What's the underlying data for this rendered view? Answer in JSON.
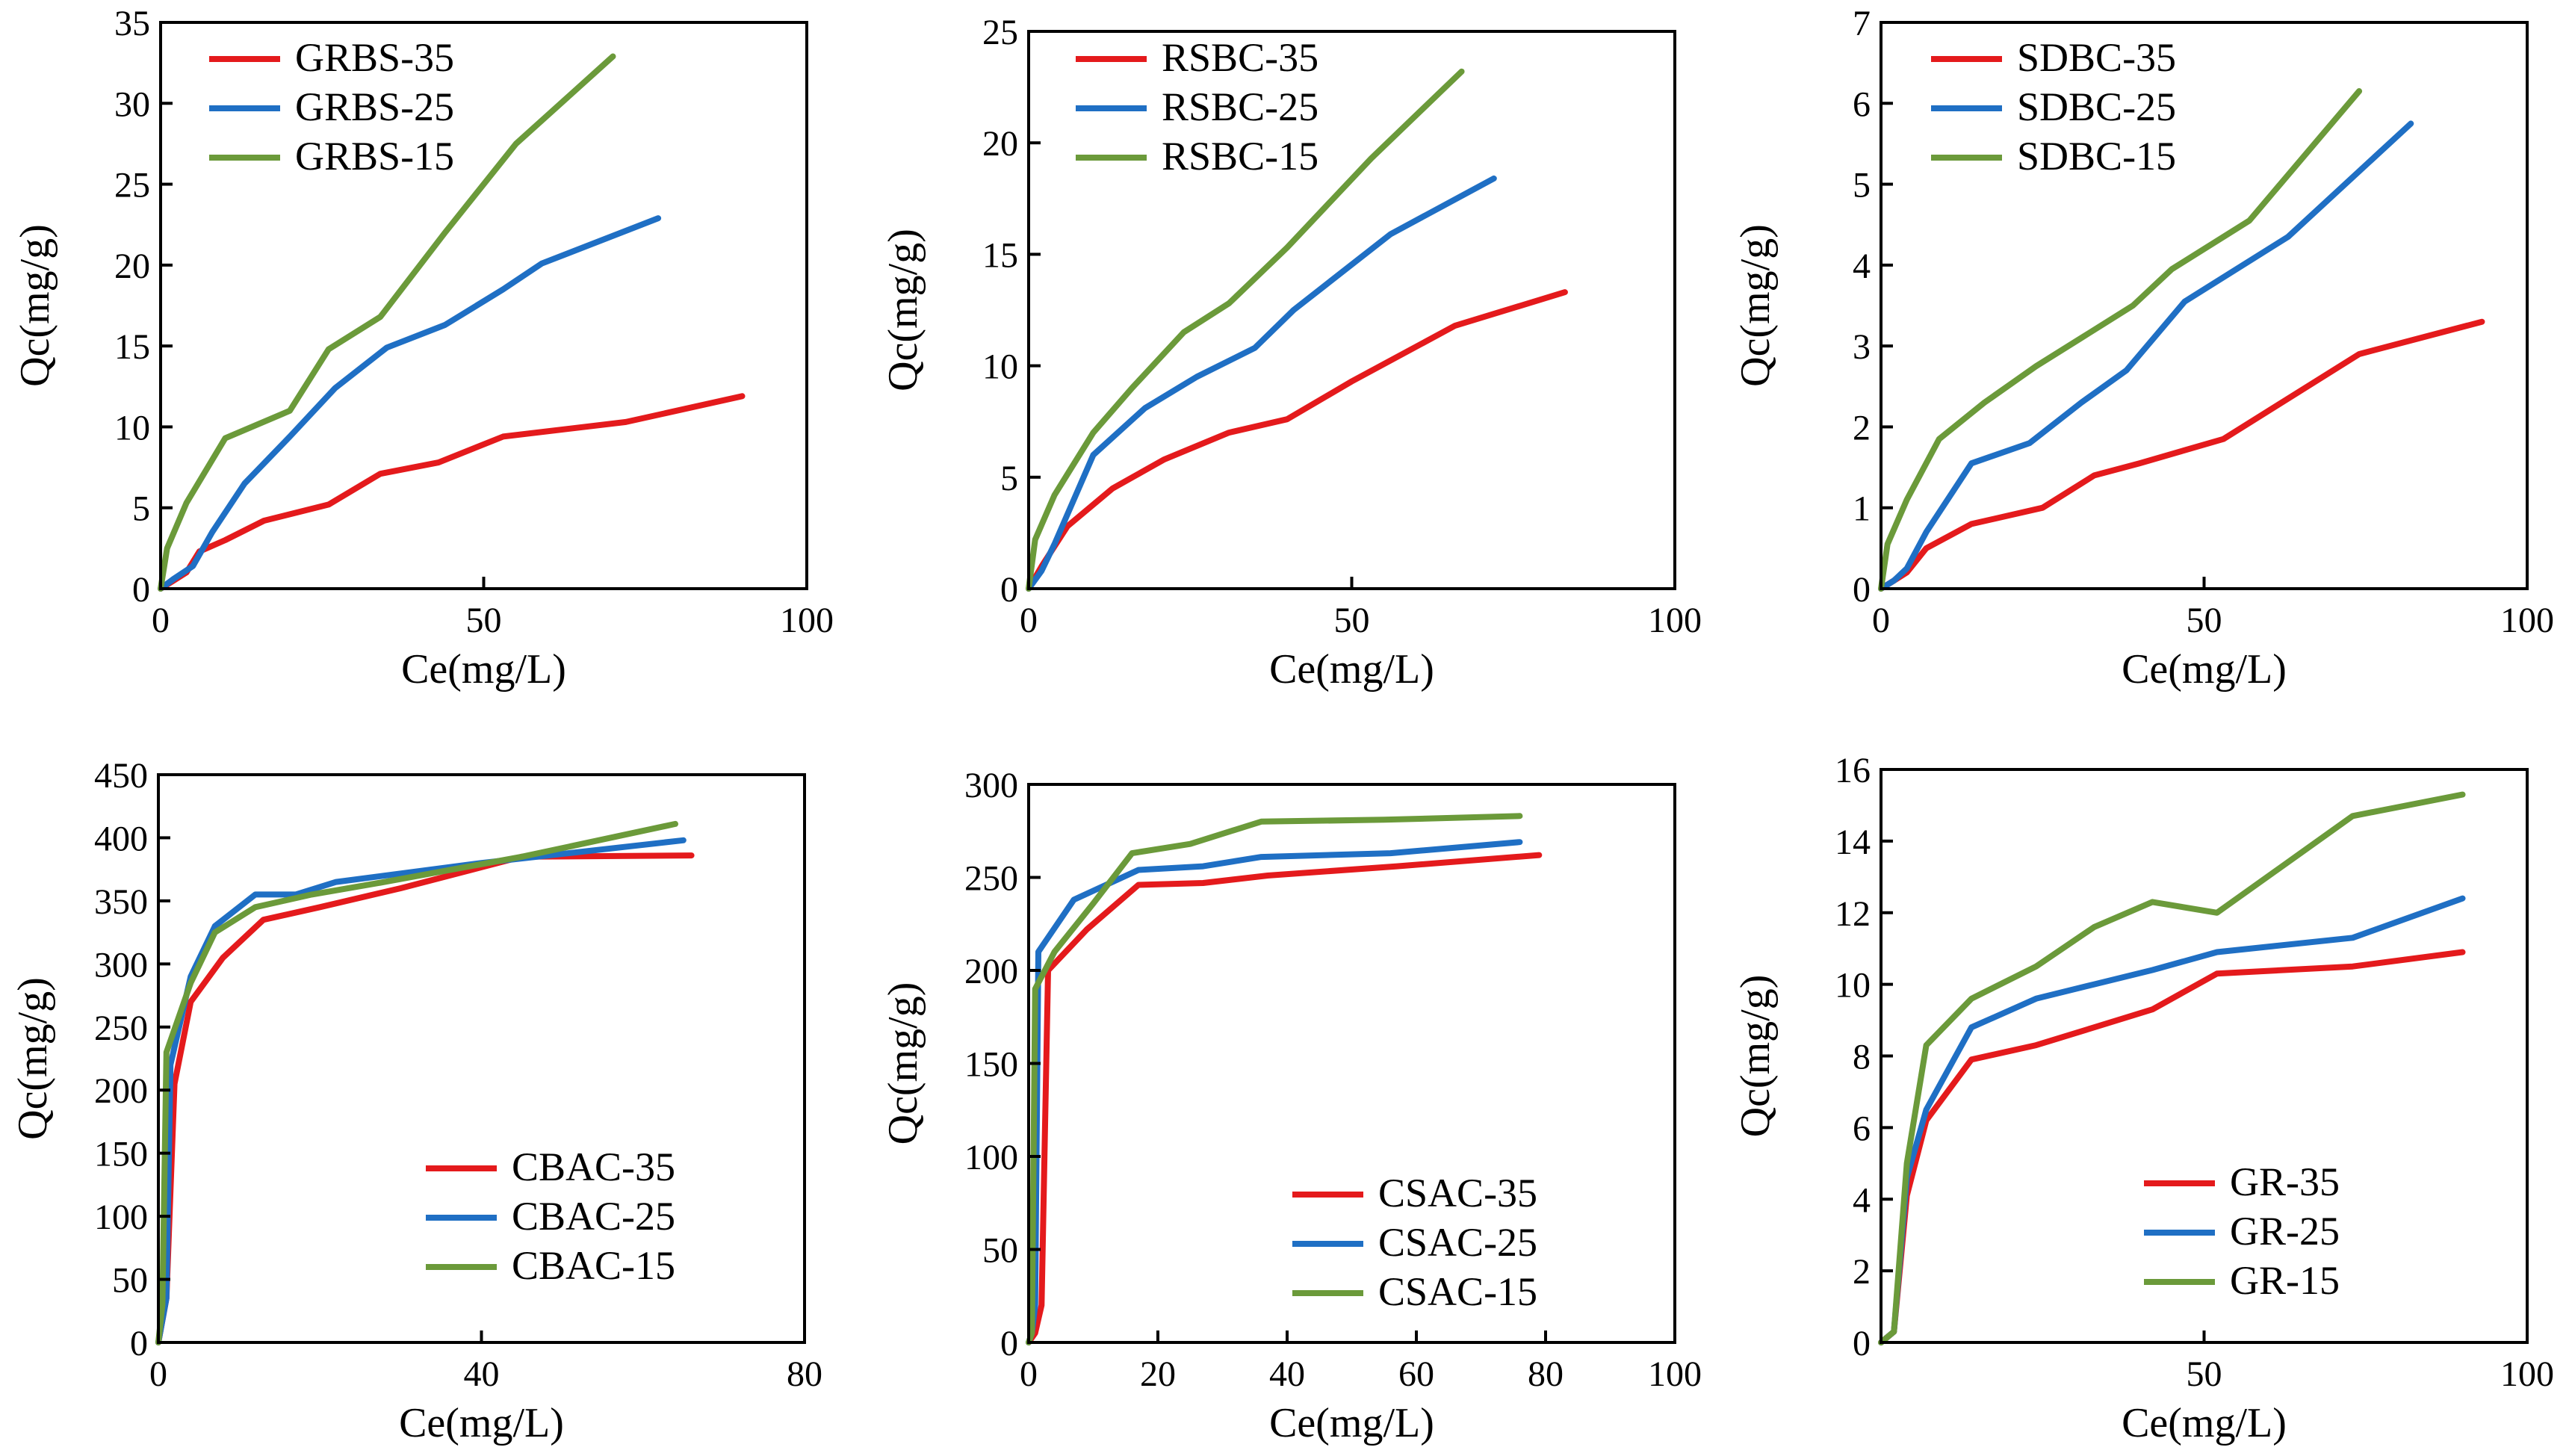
{
  "colors": {
    "s35": "#e41a1c",
    "s25": "#1f6fc4",
    "s15": "#6b9a3a"
  },
  "chart_data": [
    {
      "type": "line",
      "xlabel": "Ce(mg/L)",
      "ylabel": "Qc(mg/g)",
      "xlim": [
        0,
        100
      ],
      "ylim": [
        0,
        35
      ],
      "xticks": [
        "0",
        "50",
        "100"
      ],
      "yticks": [
        "0",
        "5",
        "10",
        "15",
        "20",
        "25",
        "30",
        "35"
      ],
      "legend_position": "top-left",
      "series": [
        {
          "name": "GRBS-35",
          "color_key": "s35",
          "x": [
            0,
            2,
            4,
            6,
            10,
            16,
            26,
            34,
            43,
            53,
            72,
            90
          ],
          "y": [
            0,
            0.5,
            1.0,
            2.3,
            3.0,
            4.2,
            5.2,
            7.1,
            7.8,
            9.4,
            10.3,
            11.9
          ]
        },
        {
          "name": "GRBS-25",
          "color_key": "s25",
          "x": [
            0,
            2,
            5,
            8,
            13,
            20,
            27,
            35,
            44,
            53,
            59,
            77
          ],
          "y": [
            0,
            0.6,
            1.4,
            3.5,
            6.5,
            9.4,
            12.4,
            14.9,
            16.3,
            18.5,
            20.1,
            22.9
          ]
        },
        {
          "name": "GRBS-15",
          "color_key": "s15",
          "x": [
            0,
            1,
            4,
            10,
            20,
            26,
            34,
            44,
            55,
            70
          ],
          "y": [
            0,
            2.5,
            5.3,
            9.3,
            11.0,
            14.8,
            16.8,
            22.0,
            27.5,
            32.9
          ]
        }
      ]
    },
    {
      "type": "line",
      "xlabel": "Ce(mg/L)",
      "ylabel": "Qc(mg/g)",
      "xlim": [
        0,
        100
      ],
      "ylim": [
        0,
        25
      ],
      "xticks": [
        "0",
        "50",
        "100"
      ],
      "yticks": [
        "0",
        "5",
        "10",
        "15",
        "20",
        "25"
      ],
      "legend_position": "top-left",
      "series": [
        {
          "name": "RSBC-35",
          "color_key": "s35",
          "x": [
            0,
            2,
            6,
            13,
            21,
            31,
            40,
            50,
            66,
            83
          ],
          "y": [
            0,
            1.0,
            2.8,
            4.5,
            5.8,
            7.0,
            7.6,
            9.3,
            11.8,
            13.3
          ]
        },
        {
          "name": "RSBC-25",
          "color_key": "s25",
          "x": [
            0,
            2,
            4,
            10,
            18,
            26,
            35,
            41,
            56,
            72
          ],
          "y": [
            0,
            0.8,
            2.0,
            6.0,
            8.1,
            9.5,
            10.8,
            12.5,
            15.9,
            18.4
          ]
        },
        {
          "name": "RSBC-15",
          "color_key": "s15",
          "x": [
            0,
            1,
            4,
            10,
            16,
            24,
            31,
            40,
            53,
            67
          ],
          "y": [
            0,
            2.2,
            4.2,
            7.0,
            9.0,
            11.5,
            12.8,
            15.3,
            19.3,
            23.2
          ]
        }
      ]
    },
    {
      "type": "line",
      "xlabel": "Ce(mg/L)",
      "ylabel": "Qc(mg/g)",
      "xlim": [
        0,
        100
      ],
      "ylim": [
        0,
        7
      ],
      "xticks": [
        "0",
        "50",
        "100"
      ],
      "yticks": [
        "0",
        "1",
        "2",
        "3",
        "4",
        "5",
        "6",
        "7"
      ],
      "legend_position": "top-left",
      "series": [
        {
          "name": "SDBC-35",
          "color_key": "s35",
          "x": [
            0,
            2,
            4,
            7,
            14,
            25,
            33,
            40,
            53,
            74,
            93
          ],
          "y": [
            0,
            0.1,
            0.2,
            0.5,
            0.8,
            1.0,
            1.4,
            1.55,
            1.85,
            2.9,
            3.3
          ]
        },
        {
          "name": "SDBC-25",
          "color_key": "s25",
          "x": [
            0,
            2,
            4,
            7,
            14,
            23,
            31,
            38,
            47,
            63,
            82
          ],
          "y": [
            0,
            0.1,
            0.25,
            0.7,
            1.55,
            1.8,
            2.3,
            2.7,
            3.55,
            4.35,
            5.75
          ]
        },
        {
          "name": "SDBC-15",
          "color_key": "s15",
          "x": [
            0,
            1,
            4,
            9,
            16,
            24,
            31,
            39,
            45,
            57,
            74
          ],
          "y": [
            0,
            0.55,
            1.1,
            1.85,
            2.3,
            2.75,
            3.1,
            3.5,
            3.95,
            4.55,
            6.15
          ]
        }
      ]
    },
    {
      "type": "line",
      "xlabel": "Ce(mg/L)",
      "ylabel": "Qc(mg/g)",
      "xlim": [
        0,
        80
      ],
      "ylim": [
        0,
        450
      ],
      "xticks": [
        "0",
        "40",
        "80"
      ],
      "yticks": [
        "0",
        "50",
        "100",
        "150",
        "200",
        "250",
        "300",
        "350",
        "400",
        "450"
      ],
      "legend_position": "bottom-right",
      "series": [
        {
          "name": "CBAC-35",
          "color_key": "s35",
          "x": [
            0,
            1,
            2,
            4,
            8,
            13,
            20,
            30,
            45,
            66
          ],
          "y": [
            0,
            35,
            205,
            270,
            305,
            335,
            345,
            360,
            385,
            386
          ]
        },
        {
          "name": "CBAC-25",
          "color_key": "s25",
          "x": [
            0,
            1,
            1.5,
            4,
            7,
            12,
            17,
            22,
            40,
            65
          ],
          "y": [
            0,
            35,
            220,
            290,
            330,
            355,
            355,
            365,
            380,
            398
          ]
        },
        {
          "name": "CBAC-15",
          "color_key": "s15",
          "x": [
            0,
            0.5,
            1,
            4,
            7,
            12,
            19,
            28,
            45,
            64
          ],
          "y": [
            0,
            30,
            230,
            285,
            325,
            345,
            355,
            365,
            385,
            411
          ]
        }
      ]
    },
    {
      "type": "line",
      "xlabel": "Ce(mg/L)",
      "ylabel": "Qc(mg/g)",
      "xlim": [
        0,
        100
      ],
      "ylim": [
        0,
        300
      ],
      "xticks": [
        "0",
        "20",
        "40",
        "60",
        "80",
        "100"
      ],
      "yticks": [
        "0",
        "50",
        "100",
        "150",
        "200",
        "250",
        "300"
      ],
      "legend_position": "bottom-right",
      "series": [
        {
          "name": "CSAC-35",
          "color_key": "s35",
          "x": [
            0,
            1,
            2,
            3,
            9,
            17,
            27,
            37,
            57,
            79
          ],
          "y": [
            0,
            5,
            20,
            200,
            222,
            246,
            247,
            251,
            256,
            262
          ]
        },
        {
          "name": "CSAC-25",
          "color_key": "s25",
          "x": [
            0,
            0.5,
            1,
            1.5,
            7,
            17,
            27,
            36,
            56,
            76
          ],
          "y": [
            0,
            5,
            20,
            210,
            238,
            254,
            256,
            261,
            263,
            269
          ]
        },
        {
          "name": "CSAC-15",
          "color_key": "s15",
          "x": [
            0,
            0.5,
            1,
            4,
            10,
            16,
            25,
            36,
            55,
            76
          ],
          "y": [
            0,
            5,
            190,
            210,
            236,
            263,
            268,
            280,
            281,
            283
          ]
        }
      ]
    },
    {
      "type": "line",
      "xlabel": "Ce(mg/L)",
      "ylabel": "Qc(mg/g)",
      "xlim": [
        0,
        100
      ],
      "ylim": [
        0,
        16
      ],
      "xticks": [
        "50",
        "100"
      ],
      "yticks": [
        "0",
        "2",
        "4",
        "6",
        "8",
        "10",
        "12",
        "14",
        "16"
      ],
      "legend_position": "bottom-right",
      "series": [
        {
          "name": "GR-35",
          "color_key": "s35",
          "x": [
            0,
            2,
            4,
            7,
            14,
            24,
            33,
            42,
            52,
            73,
            90
          ],
          "y": [
            0,
            0.3,
            4.1,
            6.2,
            7.9,
            8.3,
            8.8,
            9.3,
            10.3,
            10.5,
            10.9
          ]
        },
        {
          "name": "GR-25",
          "color_key": "s25",
          "x": [
            0,
            2,
            4,
            7,
            14,
            24,
            33,
            42,
            52,
            73,
            90
          ],
          "y": [
            0,
            0.3,
            4.6,
            6.5,
            8.8,
            9.6,
            10.0,
            10.4,
            10.9,
            11.3,
            12.4
          ]
        },
        {
          "name": "GR-15",
          "color_key": "s15",
          "x": [
            0,
            2,
            4,
            7,
            14,
            24,
            33,
            42,
            52,
            73,
            90
          ],
          "y": [
            0,
            0.3,
            5.0,
            8.3,
            9.6,
            10.5,
            11.6,
            12.3,
            12.0,
            14.7,
            15.3
          ]
        }
      ]
    }
  ]
}
